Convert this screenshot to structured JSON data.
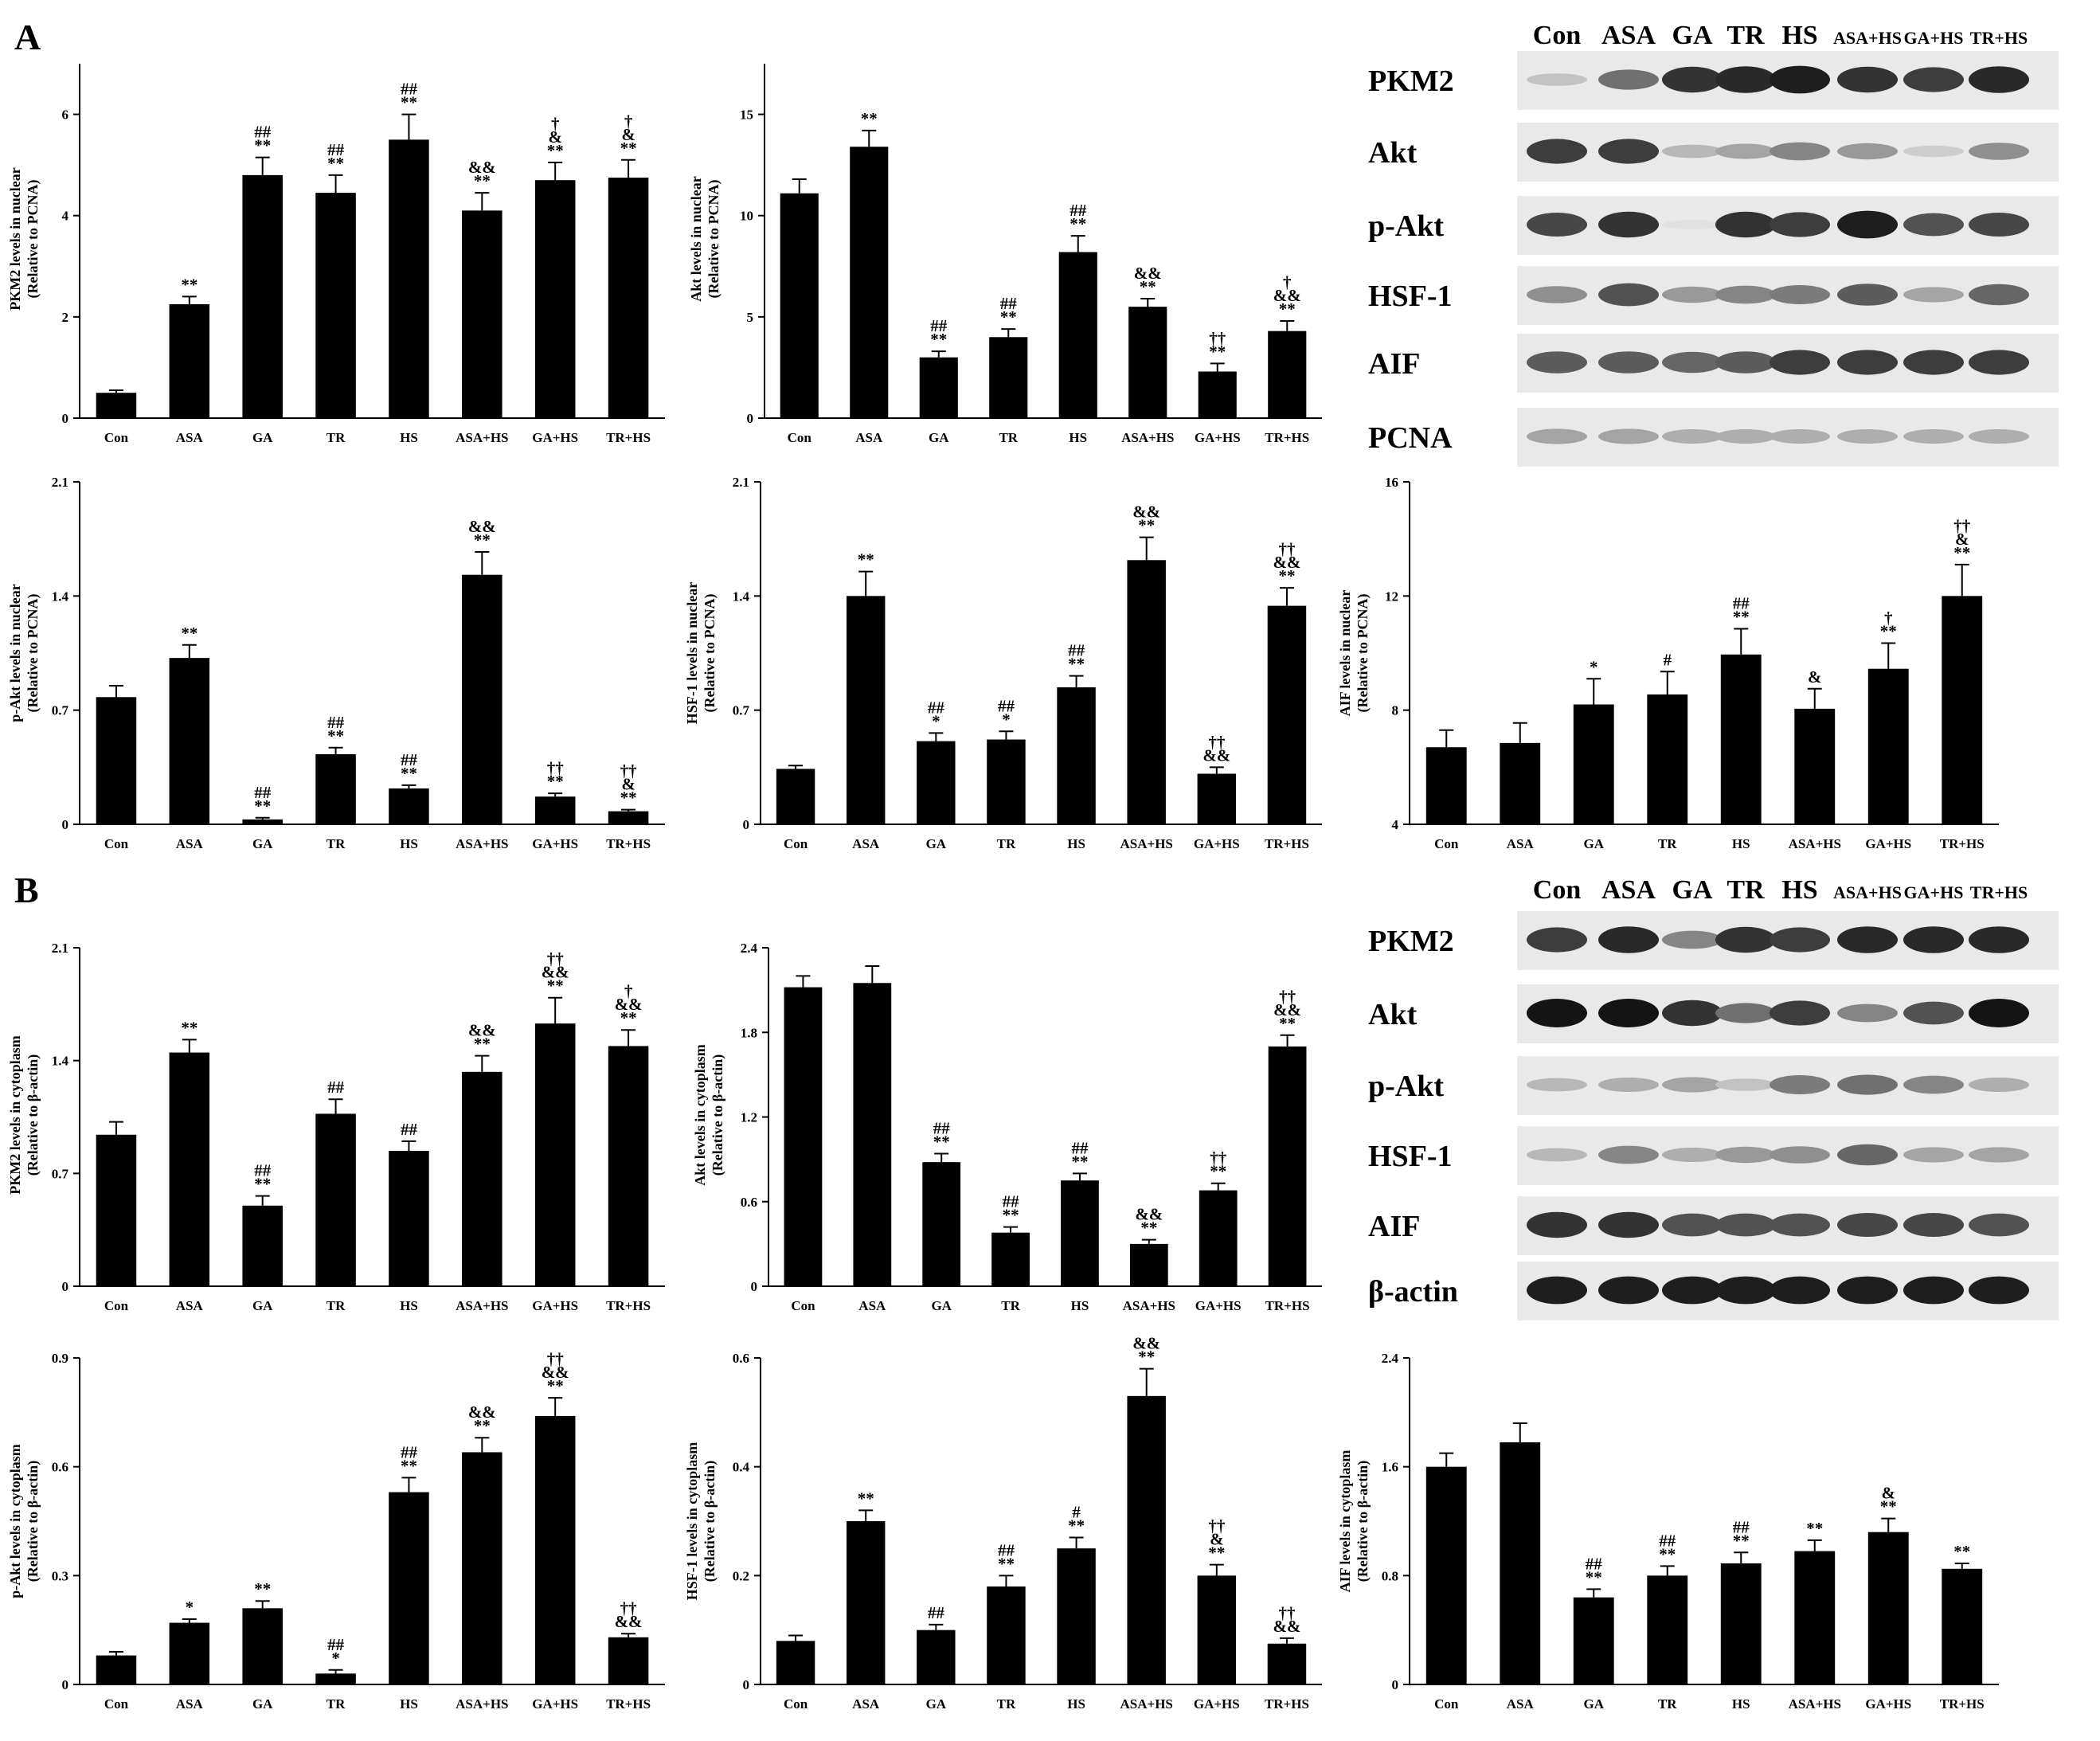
{
  "figure": {
    "panel_a_letter": "A",
    "panel_b_letter": "B"
  },
  "blots": [
    {
      "lanes": [
        "Con",
        "ASA",
        "GA",
        "TR",
        "HS",
        "ASA+HS",
        "GA+HS",
        "TR+HS"
      ],
      "proteins": [
        "PKM2",
        "Akt",
        "p-Akt",
        "HSF-1",
        "AIF",
        "PCNA"
      ]
    },
    {
      "lanes": [
        "Con",
        "ASA",
        "GA",
        "TR",
        "HS",
        "ASA+HS",
        "GA+HS",
        "TR+HS"
      ],
      "proteins": [
        "PKM2",
        "Akt",
        "p-Akt",
        "HSF-1",
        "AIF",
        "β-actin"
      ]
    }
  ],
  "chart_data": [
    {
      "type": "bar",
      "ylabel": [
        "PKM2 levels in nuclear",
        "(Relative to PCNA)"
      ],
      "categories": [
        "Con",
        "ASA",
        "GA",
        "TR",
        "HS",
        "ASA+HS",
        "GA+HS",
        "TR+HS"
      ],
      "values": [
        0.5,
        2.25,
        4.8,
        4.45,
        5.5,
        4.1,
        4.7,
        4.75
      ],
      "errors": [
        0.05,
        0.15,
        0.35,
        0.35,
        0.5,
        0.35,
        0.35,
        0.35
      ],
      "sig": [
        [],
        [
          "**"
        ],
        [
          "##",
          "**"
        ],
        [
          "##",
          "**"
        ],
        [
          "##",
          "**"
        ],
        [
          "&&",
          "**"
        ],
        [
          "†",
          "&",
          "**"
        ],
        [
          "†",
          "&",
          "**"
        ]
      ],
      "ylim": [
        0,
        7
      ],
      "ticks": [
        "0",
        "2",
        "4",
        "6"
      ],
      "tick_values": [
        0,
        2,
        4,
        6
      ]
    },
    {
      "type": "bar",
      "ylabel": [
        "Akt levels in nuclear",
        "(Relative to PCNA)"
      ],
      "categories": [
        "Con",
        "ASA",
        "GA",
        "TR",
        "HS",
        "ASA+HS",
        "GA+HS",
        "TR+HS"
      ],
      "values": [
        11.1,
        13.4,
        3.0,
        4.0,
        8.2,
        5.5,
        2.3,
        4.3
      ],
      "errors": [
        0.7,
        0.8,
        0.3,
        0.4,
        0.8,
        0.4,
        0.4,
        0.5
      ],
      "sig": [
        [],
        [
          "**"
        ],
        [
          "##",
          "**"
        ],
        [
          "##",
          "**"
        ],
        [
          "##",
          "**"
        ],
        [
          "&&",
          "**"
        ],
        [
          "††",
          "**"
        ],
        [
          "†",
          "&&",
          "**"
        ]
      ],
      "ylim": [
        0,
        17.5
      ],
      "ticks": [
        "0",
        "5",
        "10",
        "15"
      ],
      "tick_values": [
        0,
        5,
        10,
        15
      ]
    },
    {
      "type": "bar",
      "ylabel": [
        "p-Akt levels in nuclear",
        "(Relative to PCNA)"
      ],
      "categories": [
        "Con",
        "ASA",
        "GA",
        "TR",
        "HS",
        "ASA+HS",
        "GA+HS",
        "TR+HS"
      ],
      "values": [
        0.78,
        1.02,
        0.03,
        0.43,
        0.22,
        1.53,
        0.17,
        0.08
      ],
      "errors": [
        0.07,
        0.08,
        0.01,
        0.04,
        0.02,
        0.14,
        0.02,
        0.01
      ],
      "sig": [
        [],
        [
          "**"
        ],
        [
          "##",
          "**"
        ],
        [
          "##",
          "**"
        ],
        [
          "##",
          "**"
        ],
        [
          "&&",
          "**"
        ],
        [
          "††",
          "**"
        ],
        [
          "††",
          "&",
          "**"
        ]
      ],
      "ylim": [
        0,
        2.1
      ],
      "ticks": [
        "0",
        "0.7",
        "1.4",
        "2.1"
      ],
      "tick_values": [
        0,
        0.7,
        1.4,
        2.1
      ]
    },
    {
      "type": "bar",
      "ylabel": [
        "HSF-1 levels in nuclear",
        "(Relative to PCNA)"
      ],
      "categories": [
        "Con",
        "ASA",
        "GA",
        "TR",
        "HS",
        "ASA+HS",
        "GA+HS",
        "TR+HS"
      ],
      "values": [
        0.34,
        1.4,
        0.51,
        0.52,
        0.84,
        1.62,
        0.31,
        1.34
      ],
      "errors": [
        0.02,
        0.15,
        0.05,
        0.05,
        0.07,
        0.14,
        0.04,
        0.11
      ],
      "sig": [
        [],
        [
          "**"
        ],
        [
          "##",
          "*"
        ],
        [
          "##",
          "*"
        ],
        [
          "##",
          "**"
        ],
        [
          "&&",
          "**"
        ],
        [
          "††",
          "&&"
        ],
        [
          "††",
          "&&",
          "**"
        ]
      ],
      "ylim": [
        0,
        2.1
      ],
      "ticks": [
        "0",
        "0.7",
        "1.4",
        "2.1"
      ],
      "tick_values": [
        0,
        0.7,
        1.4,
        2.1
      ]
    },
    {
      "type": "bar",
      "ylabel": [
        "AIF levels in nuclear",
        "(Relative to PCNA)"
      ],
      "categories": [
        "Con",
        "ASA",
        "GA",
        "TR",
        "HS",
        "ASA+HS",
        "GA+HS",
        "TR+HS"
      ],
      "values": [
        6.7,
        6.85,
        8.2,
        8.55,
        9.95,
        8.05,
        9.45,
        12.0
      ],
      "errors": [
        0.6,
        0.7,
        0.9,
        0.8,
        0.9,
        0.7,
        0.9,
        1.1
      ],
      "sig": [
        [],
        [],
        [
          "*"
        ],
        [
          "#"
        ],
        [
          "##",
          "**"
        ],
        [
          "&"
        ],
        [
          "†",
          "**"
        ],
        [
          "††",
          "&",
          "**"
        ]
      ],
      "ylim": [
        4,
        16
      ],
      "ticks": [
        "4",
        "8",
        "12",
        "16"
      ],
      "tick_values": [
        4,
        8,
        12,
        16
      ]
    },
    {
      "type": "bar",
      "ylabel": [
        "PKM2 levels in cytoplasm",
        "(Relative to β-actin)"
      ],
      "categories": [
        "Con",
        "ASA",
        "GA",
        "TR",
        "HS",
        "ASA+HS",
        "GA+HS",
        "TR+HS"
      ],
      "values": [
        0.94,
        1.45,
        0.5,
        1.07,
        0.84,
        1.33,
        1.63,
        1.49
      ],
      "errors": [
        0.08,
        0.08,
        0.06,
        0.09,
        0.06,
        0.1,
        0.16,
        0.1
      ],
      "sig": [
        [],
        [
          "**"
        ],
        [
          "##",
          "**"
        ],
        [
          "##"
        ],
        [
          "##"
        ],
        [
          "&&",
          "**"
        ],
        [
          "††",
          "&&",
          "**"
        ],
        [
          "†",
          "&&",
          "**"
        ]
      ],
      "ylim": [
        0,
        2.1
      ],
      "ticks": [
        "0",
        "0.7",
        "1.4",
        "2.1"
      ],
      "tick_values": [
        0,
        0.7,
        1.4,
        2.1
      ]
    },
    {
      "type": "bar",
      "ylabel": [
        "Akt levels in cytoplasm",
        "(Relative to β-actin)"
      ],
      "categories": [
        "Con",
        "ASA",
        "GA",
        "TR",
        "HS",
        "ASA+HS",
        "GA+HS",
        "TR+HS"
      ],
      "values": [
        2.12,
        2.15,
        0.88,
        0.38,
        0.75,
        0.3,
        0.68,
        1.7
      ],
      "errors": [
        0.08,
        0.12,
        0.06,
        0.04,
        0.05,
        0.03,
        0.05,
        0.08
      ],
      "sig": [
        [],
        [],
        [
          "##",
          "**"
        ],
        [
          "##",
          "**"
        ],
        [
          "##",
          "**"
        ],
        [
          "&&",
          "**"
        ],
        [
          "††",
          "**"
        ],
        [
          "††",
          "&&",
          "**"
        ]
      ],
      "ylim": [
        0,
        2.4
      ],
      "ticks": [
        "0",
        "0.6",
        "1.2",
        "1.8",
        "2.4"
      ],
      "tick_values": [
        0,
        0.6,
        1.2,
        1.8,
        2.4
      ]
    },
    {
      "type": "bar",
      "ylabel": [
        "p-Akt levels in cytoplasm",
        "(Relative to β-actin)"
      ],
      "categories": [
        "Con",
        "ASA",
        "GA",
        "TR",
        "HS",
        "ASA+HS",
        "GA+HS",
        "TR+HS"
      ],
      "values": [
        0.08,
        0.17,
        0.21,
        0.03,
        0.53,
        0.64,
        0.74,
        0.13
      ],
      "errors": [
        0.01,
        0.01,
        0.02,
        0.01,
        0.04,
        0.04,
        0.05,
        0.01
      ],
      "sig": [
        [],
        [
          "*"
        ],
        [
          "**"
        ],
        [
          "##",
          "*"
        ],
        [
          "##",
          "**"
        ],
        [
          "&&",
          "**"
        ],
        [
          "††",
          "&&",
          "**"
        ],
        [
          "††",
          "&&"
        ]
      ],
      "ylim": [
        0,
        0.9
      ],
      "ticks": [
        "0",
        "0.3",
        "0.6",
        "0.9"
      ],
      "tick_values": [
        0,
        0.3,
        0.6,
        0.9
      ]
    },
    {
      "type": "bar",
      "ylabel": [
        "HSF-1 levels in cytoplasm",
        "(Relative to β-actin)"
      ],
      "categories": [
        "Con",
        "ASA",
        "GA",
        "TR",
        "HS",
        "ASA+HS",
        "GA+HS",
        "TR+HS"
      ],
      "values": [
        0.08,
        0.3,
        0.1,
        0.18,
        0.25,
        0.53,
        0.2,
        0.075
      ],
      "errors": [
        0.01,
        0.02,
        0.01,
        0.02,
        0.02,
        0.05,
        0.02,
        0.01
      ],
      "sig": [
        [],
        [
          "**"
        ],
        [
          "##"
        ],
        [
          "##",
          "**"
        ],
        [
          "#",
          "**"
        ],
        [
          "&&",
          "**"
        ],
        [
          "††",
          "&",
          "**"
        ],
        [
          "††",
          "&&"
        ]
      ],
      "ylim": [
        0,
        0.6
      ],
      "ticks": [
        "0",
        "0.2",
        "0.4",
        "0.6"
      ],
      "tick_values": [
        0,
        0.2,
        0.4,
        0.6
      ]
    },
    {
      "type": "bar",
      "ylabel": [
        "AIF levels in cytoplasm",
        "(Relative to β-actin)"
      ],
      "categories": [
        "Con",
        "ASA",
        "GA",
        "TR",
        "HS",
        "ASA+HS",
        "GA+HS",
        "TR+HS"
      ],
      "values": [
        1.6,
        1.78,
        0.64,
        0.8,
        0.89,
        0.98,
        1.12,
        0.85
      ],
      "errors": [
        0.1,
        0.14,
        0.06,
        0.07,
        0.08,
        0.08,
        0.1,
        0.04
      ],
      "sig": [
        [],
        [],
        [
          "##",
          "**"
        ],
        [
          "##",
          "**"
        ],
        [
          "##",
          "**"
        ],
        [
          "**"
        ],
        [
          "&",
          "**"
        ],
        [
          "**"
        ]
      ],
      "ylim": [
        0,
        2.4
      ],
      "ticks": [
        "0",
        "0.8",
        "1.6",
        "2.4"
      ],
      "tick_values": [
        0,
        0.8,
        1.6,
        2.4
      ]
    }
  ]
}
